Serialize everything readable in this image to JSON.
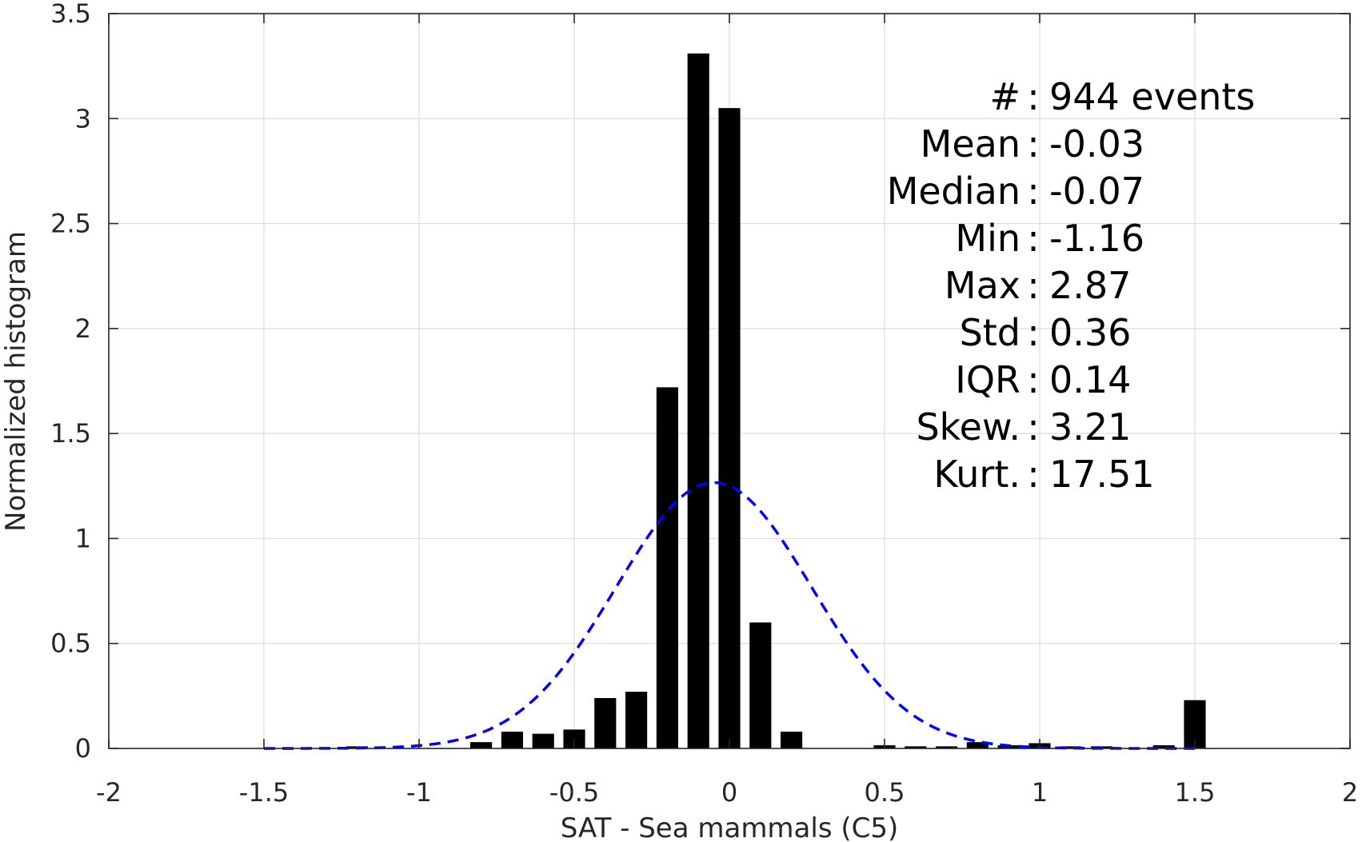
{
  "chart_data": {
    "type": "bar",
    "xlabel": "SAT - Sea mammals (C5)",
    "ylabel": "Normalized histogram",
    "xlim": [
      -2,
      2
    ],
    "ylim": [
      0,
      3.5
    ],
    "x_ticks": [
      -2,
      -1.5,
      -1,
      -0.5,
      0,
      0.5,
      1,
      1.5,
      2
    ],
    "x_tick_labels": [
      "-2",
      "-1.5",
      "-1",
      "-0.5",
      "0",
      "0.5",
      "1",
      "1.5",
      "2"
    ],
    "y_ticks": [
      0,
      0.5,
      1,
      1.5,
      2,
      2.5,
      3,
      3.5
    ],
    "y_tick_labels": [
      "0",
      "0.5",
      "1",
      "1.5",
      "2",
      "2.5",
      "3",
      "3.5"
    ],
    "grid": true,
    "bar_color": "#000000",
    "bar_width": 0.07,
    "bars": {
      "x": [
        -1.2,
        -0.8,
        -0.7,
        -0.6,
        -0.5,
        -0.4,
        -0.3,
        -0.2,
        -0.1,
        0.0,
        0.1,
        0.2,
        0.5,
        0.6,
        0.7,
        0.8,
        0.9,
        1.0,
        1.1,
        1.2,
        1.4,
        1.5
      ],
      "values": [
        0.01,
        0.03,
        0.08,
        0.07,
        0.09,
        0.24,
        0.27,
        1.72,
        3.31,
        3.05,
        0.6,
        0.08,
        0.015,
        0.01,
        0.01,
        0.03,
        0.015,
        0.025,
        0.01,
        0.01,
        0.015,
        0.23
      ]
    },
    "fit_curve": {
      "style": "dashed",
      "color": "#0000ff",
      "mean": -0.05,
      "std": 0.315,
      "x_range": [
        -1.5,
        1.5
      ]
    },
    "stats": [
      {
        "label": "#  ",
        "value": "944 events"
      },
      {
        "label": "Mean",
        "value": "-0.03"
      },
      {
        "label": "Median",
        "value": "-0.07"
      },
      {
        "label": "Min",
        "value": "-1.16"
      },
      {
        "label": "Max",
        "value": "2.87"
      },
      {
        "label": "Std",
        "value": "0.36"
      },
      {
        "label": "IQR",
        "value": "0.14"
      },
      {
        "label": "Skew.",
        "value": "3.21"
      },
      {
        "label": "Kurt.",
        "value": "17.51"
      }
    ]
  }
}
